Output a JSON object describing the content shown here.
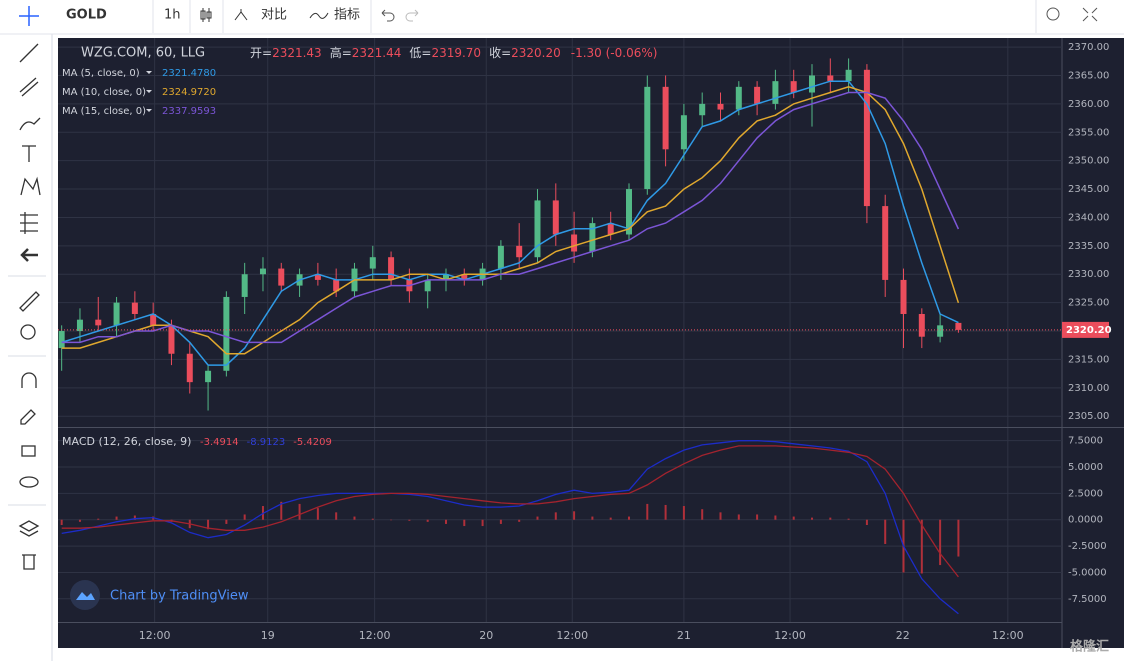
{
  "toolbar": {
    "symbol": "GOLD",
    "interval": "1h",
    "compare": "对比",
    "indicators": "指标"
  },
  "watermark": "格隆汇",
  "branding": "Chart by TradingView",
  "chart_data": [
    {
      "type": "candlestick",
      "title": "WZG.COM, 60, LLG",
      "ohlc_labels": [
        {
          "label": "开=",
          "value": "2321.43"
        },
        {
          "label": "高=",
          "value": "2321.44"
        },
        {
          "label": "低=",
          "value": "2319.70"
        },
        {
          "label": "收=",
          "value": "2320.20"
        }
      ],
      "change": "-1.30 (-0.06%)",
      "up_color": "#53b987",
      "down_color": "#eb4d5c",
      "open": [
        2317,
        2320,
        2322,
        2321,
        2325,
        2323,
        2321,
        2316,
        2311,
        2313,
        2326,
        2330,
        2331,
        2328,
        2330,
        2329,
        2327,
        2331,
        2333,
        2329,
        2327,
        2329,
        2330,
        2329,
        2331,
        2335,
        2333,
        2343,
        2337,
        2334,
        2339,
        2337,
        2345,
        2363,
        2352,
        2358,
        2360,
        2359,
        2363,
        2360,
        2364,
        2362,
        2365,
        2364,
        2366,
        2342,
        2329,
        2323,
        2319,
        2321.43
      ],
      "high": [
        2321,
        2324,
        2326,
        2326,
        2327,
        2325,
        2322,
        2318,
        2314,
        2327,
        2332,
        2333,
        2332,
        2331,
        2332,
        2331,
        2332,
        2335,
        2334,
        2331,
        2330,
        2331,
        2331,
        2332,
        2336,
        2339,
        2345,
        2346,
        2341,
        2340,
        2341,
        2346,
        2365,
        2365,
        2360,
        2362,
        2362,
        2364,
        2364,
        2366,
        2366,
        2367,
        2368,
        2368,
        2367,
        2344,
        2331,
        2324,
        2323,
        2321.44
      ],
      "low": [
        2313,
        2318,
        2320,
        2319,
        2322,
        2320,
        2314,
        2309,
        2306,
        2312,
        2323,
        2327,
        2327,
        2326,
        2328,
        2326,
        2326,
        2329,
        2328,
        2325,
        2324,
        2327,
        2328,
        2328,
        2329,
        2331,
        2332,
        2335,
        2332,
        2333,
        2336,
        2336,
        2344,
        2349,
        2350,
        2356,
        2357,
        2358,
        2358,
        2359,
        2361,
        2356,
        2362,
        2362,
        2339,
        2326,
        2317,
        2317,
        2318,
        2319.7
      ],
      "close": [
        2320,
        2322,
        2321,
        2325,
        2323,
        2321,
        2316,
        2311,
        2313,
        2326,
        2330,
        2331,
        2328,
        2330,
        2329,
        2327,
        2331,
        2333,
        2329,
        2327,
        2329,
        2330,
        2329,
        2331,
        2335,
        2333,
        2343,
        2337,
        2334,
        2339,
        2337,
        2345,
        2363,
        2352,
        2358,
        2360,
        2359,
        2363,
        2360,
        2364,
        2362,
        2365,
        2364,
        2366,
        2342,
        2329,
        2323,
        2319,
        2321,
        2320.2
      ],
      "series": [
        {
          "name": "MA (5, close, 0)",
          "color": "#2f9ae6",
          "last_value": "2321.4780",
          "values": [
            2318,
            2319,
            2320,
            2321,
            2322,
            2323,
            2321,
            2318,
            2314,
            2314,
            2317,
            2322,
            2327,
            2329,
            2330,
            2329,
            2329,
            2330,
            2330,
            2329,
            2330,
            2330,
            2329,
            2330,
            2331,
            2332,
            2335,
            2337,
            2338,
            2338,
            2339,
            2338,
            2343,
            2346,
            2351,
            2356,
            2357,
            2359,
            2360,
            2361,
            2362,
            2363,
            2364,
            2364,
            2360,
            2353,
            2342,
            2332,
            2323,
            2321.478
          ]
        },
        {
          "name": "MA (10, close, 0)",
          "color": "#e0a82e",
          "last_value": "2324.9720",
          "values": [
            2317,
            2317,
            2318,
            2319,
            2320,
            2321,
            2321,
            2320,
            2319,
            2316,
            2316,
            2318,
            2320,
            2322,
            2325,
            2327,
            2329,
            2329,
            2329,
            2330,
            2330,
            2329,
            2330,
            2330,
            2330,
            2331,
            2332,
            2334,
            2335,
            2336,
            2337,
            2338,
            2341,
            2342,
            2345,
            2347,
            2350,
            2354,
            2357,
            2358,
            2360,
            2361,
            2362,
            2363,
            2362,
            2359,
            2353,
            2345,
            2335,
            2324.972
          ]
        },
        {
          "name": "MA (15, close, 0)",
          "color": "#7b55d6",
          "last_value": "2337.9593",
          "values": [
            2318,
            2318,
            2319,
            2319,
            2320,
            2320,
            2321,
            2320,
            2320,
            2319,
            2318,
            2318,
            2318,
            2320,
            2322,
            2324,
            2326,
            2327,
            2328,
            2328,
            2329,
            2329,
            2329,
            2329,
            2330,
            2330,
            2331,
            2332,
            2333,
            2334,
            2335,
            2336,
            2338,
            2339,
            2341,
            2343,
            2346,
            2350,
            2354,
            2357,
            2359,
            2360,
            2361,
            2362,
            2362,
            2361,
            2357,
            2352,
            2345,
            2337.9593
          ]
        }
      ],
      "current_price": {
        "value": 2320.2,
        "label": "2320.20"
      },
      "xlim": [
        -0.2,
        54.66
      ],
      "xticks": [
        {
          "value": 5.08,
          "label": "12:00"
        },
        {
          "value": 11.26,
          "label": "19"
        },
        {
          "value": 17.1,
          "label": "12:00"
        },
        {
          "value": 23.2,
          "label": "20"
        },
        {
          "value": 27.9,
          "label": "12:00"
        },
        {
          "value": 34.0,
          "label": "21"
        },
        {
          "value": 39.8,
          "label": "12:00"
        },
        {
          "value": 45.96,
          "label": "22"
        },
        {
          "value": 51.7,
          "label": "12:00"
        }
      ],
      "ylim": [
        2303.1,
        2371.6
      ],
      "yticks": [
        {
          "value": 2305,
          "label": "2305.00"
        },
        {
          "value": 2310,
          "label": "2310.00"
        },
        {
          "value": 2315,
          "label": "2315.00"
        },
        {
          "value": 2320,
          "label": "2320.00"
        },
        {
          "value": 2325,
          "label": "2325.00"
        },
        {
          "value": 2330,
          "label": "2330.00"
        },
        {
          "value": 2335,
          "label": "2335.00"
        },
        {
          "value": 2340,
          "label": "2340.00"
        },
        {
          "value": 2345,
          "label": "2345.00"
        },
        {
          "value": 2350,
          "label": "2350.00"
        },
        {
          "value": 2355,
          "label": "2355.00"
        },
        {
          "value": 2360,
          "label": "2360.00"
        },
        {
          "value": 2365,
          "label": "2365.00"
        },
        {
          "value": 2370,
          "label": "2370.00"
        }
      ],
      "grid": true
    },
    {
      "type": "macd",
      "title": "MACD (12, 26, close, 9)",
      "histogram": {
        "color": "#b0303a",
        "last_value": "-3.4914",
        "values": [
          -0.5,
          -0.2,
          0.1,
          0.3,
          0.4,
          0.3,
          -0.2,
          -0.8,
          -0.9,
          -0.4,
          0.5,
          1.3,
          1.7,
          1.5,
          1.1,
          0.7,
          0.3,
          0.1,
          0,
          -0.1,
          -0.2,
          -0.4,
          -0.6,
          -0.6,
          -0.4,
          -0.2,
          0.3,
          0.7,
          0.8,
          0.3,
          0.2,
          0.3,
          1.5,
          1.4,
          1.3,
          1.0,
          0.7,
          0.5,
          0.5,
          0.4,
          0.3,
          0.2,
          0.2,
          0.1,
          -0.5,
          -2.3,
          -5.0,
          -5.1,
          -4.3,
          -3.4914
        ]
      },
      "series": [
        {
          "name": "MACD",
          "color": "#1c2cc8",
          "last_value": "-8.9123",
          "values": [
            -1.3,
            -1.0,
            -0.6,
            -0.2,
            0.1,
            0.2,
            -0.3,
            -1.2,
            -1.7,
            -1.4,
            -0.5,
            0.6,
            1.5,
            2.0,
            2.3,
            2.5,
            2.5,
            2.5,
            2.5,
            2.4,
            2.2,
            1.8,
            1.4,
            1.2,
            1.2,
            1.3,
            1.8,
            2.4,
            2.8,
            2.5,
            2.6,
            2.8,
            4.8,
            5.8,
            6.6,
            7.1,
            7.3,
            7.5,
            7.5,
            7.4,
            7.2,
            7.0,
            6.8,
            6.5,
            5.5,
            2.5,
            -2.5,
            -5.6,
            -7.5,
            -8.9123
          ]
        },
        {
          "name": "Signal",
          "color": "#a3232e",
          "last_value": "-5.4209",
          "values": [
            -0.8,
            -0.8,
            -0.7,
            -0.5,
            -0.3,
            -0.1,
            -0.1,
            -0.4,
            -0.8,
            -1.0,
            -1.0,
            -0.7,
            -0.2,
            0.5,
            1.2,
            1.8,
            2.2,
            2.4,
            2.5,
            2.5,
            2.4,
            2.2,
            2.0,
            1.8,
            1.6,
            1.5,
            1.5,
            1.7,
            2.0,
            2.2,
            2.4,
            2.5,
            3.3,
            4.4,
            5.3,
            6.1,
            6.6,
            7.0,
            7.0,
            7.0,
            6.9,
            6.8,
            6.6,
            6.4,
            6.0,
            4.8,
            2.5,
            -0.5,
            -3.2,
            -5.4209
          ]
        }
      ],
      "ylim": [
        -9.7,
        8.7
      ],
      "yticks": [
        {
          "value": 7.5,
          "label": "7.5000"
        },
        {
          "value": 5,
          "label": "5.0000"
        },
        {
          "value": 2.5,
          "label": "2.5000"
        },
        {
          "value": 0,
          "label": "0.0000"
        },
        {
          "value": -2.5,
          "label": "-2.5000"
        },
        {
          "value": -5,
          "label": "-5.0000"
        },
        {
          "value": -7.5,
          "label": "-7.5000"
        }
      ],
      "grid": true
    }
  ]
}
